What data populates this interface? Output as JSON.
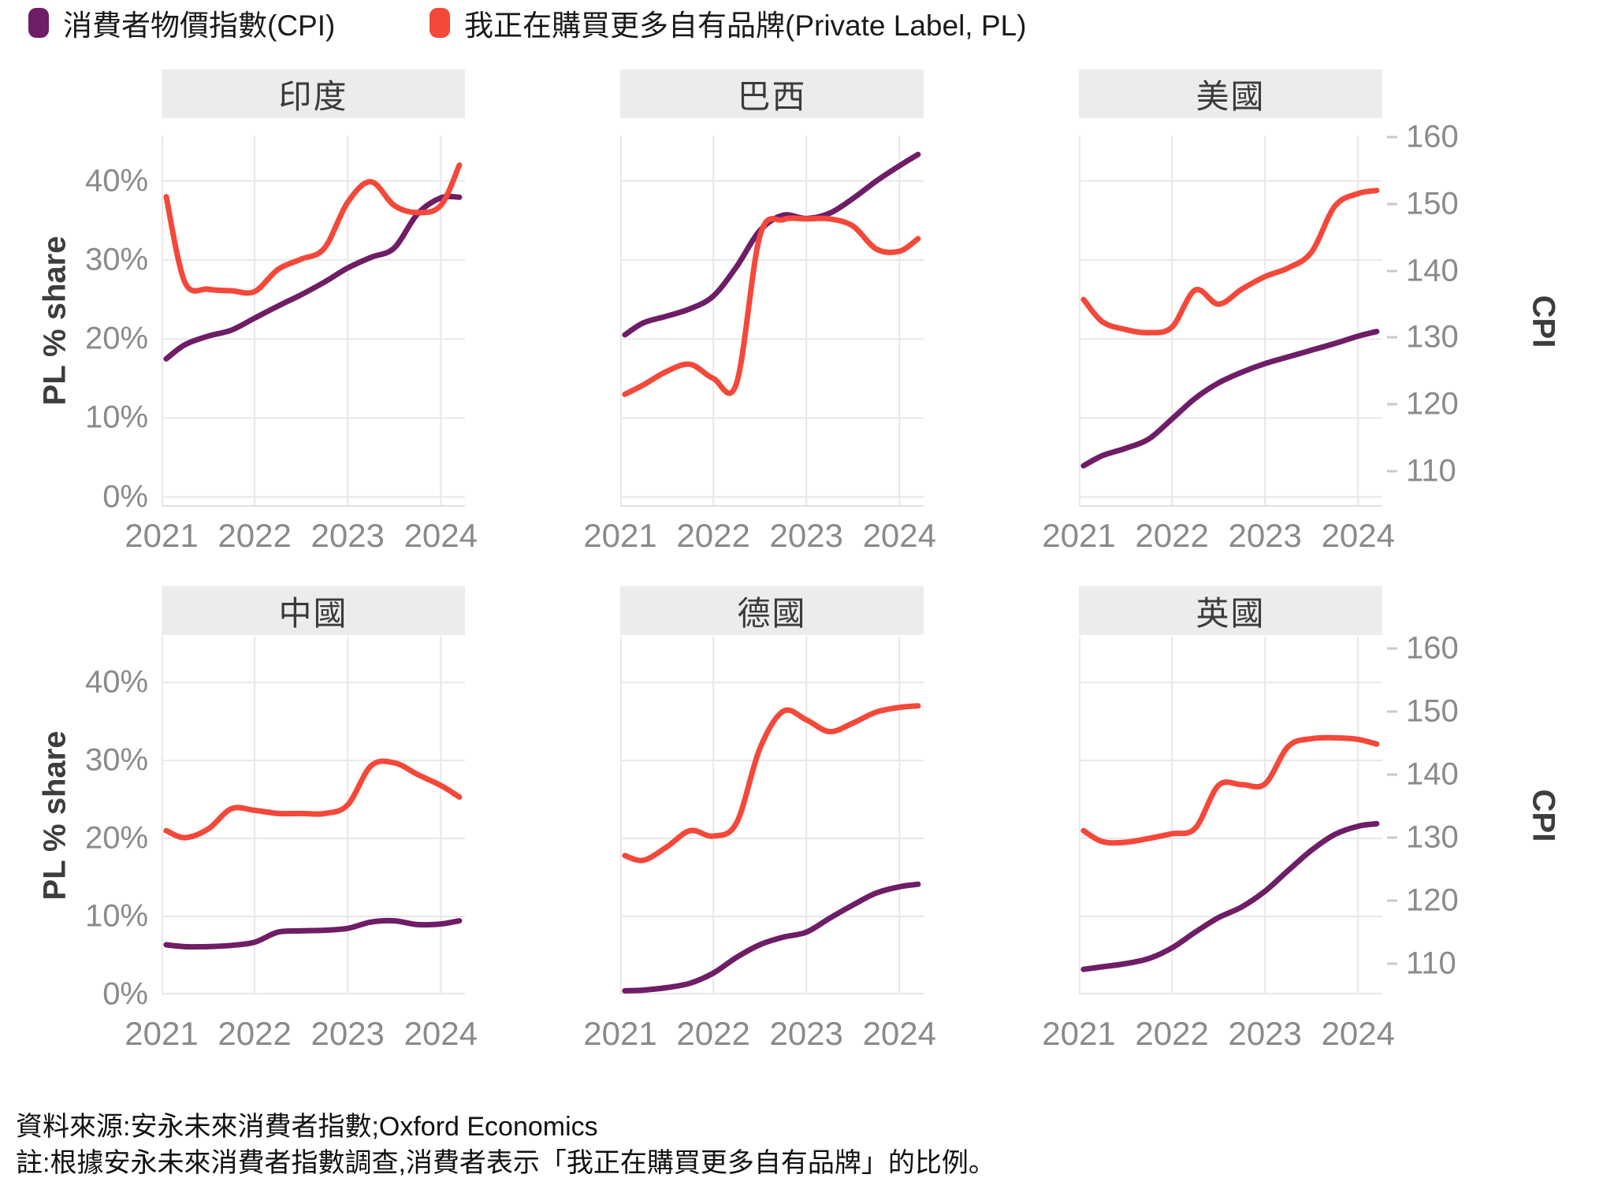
{
  "legend": {
    "items": [
      {
        "id": "cpi",
        "label": "消費者物價指數(CPI)",
        "color": "#6E1D66"
      },
      {
        "id": "pl",
        "label": "我正在購買更多自有品牌(Private Label, PL)",
        "color": "#F4483A"
      }
    ]
  },
  "axes": {
    "left_title": "PL % share",
    "right_title": "CPI",
    "left_ticks": [
      "40%",
      "30%",
      "20%",
      "10%",
      "0%"
    ],
    "right_ticks": [
      "160",
      "150",
      "140",
      "130",
      "120",
      "110"
    ],
    "x_ticks": [
      "2021",
      "2022",
      "2023",
      "2024"
    ]
  },
  "footer": {
    "source": "資料來源:安永未來消費者指數;Oxford Economics",
    "note": "註:根據安永未來消費者指數調查,消費者表示「我正在購買更多自有品牌」的比例。"
  },
  "chart_data": {
    "type": "line",
    "facets": "2 rows x 3 cols, shared axes",
    "x_label": "year",
    "x_range": [
      2021,
      2024.26
    ],
    "x": [
      2021.05,
      2021.25,
      2021.5,
      2021.75,
      2022.0,
      2022.25,
      2022.5,
      2022.75,
      2023.0,
      2023.25,
      2023.5,
      2023.75,
      2024.0,
      2024.2
    ],
    "series_names": {
      "pl": "我正在購買更多自有品牌 (PL % share, left axis)",
      "cpi": "消費者物價指數 CPI (right axis)"
    },
    "left_axis": {
      "label": "PL % share",
      "ticks_pct": [
        40,
        30,
        20,
        10,
        0
      ]
    },
    "right_axis": {
      "label": "CPI",
      "ticks": [
        160,
        150,
        140,
        130,
        120,
        110
      ]
    },
    "grid": "light gray at left-axis ticks and year ticks",
    "legend_position": "top-left",
    "panels": [
      {
        "title": "印度",
        "pl": [
          38.0,
          27.2,
          26.3,
          26.1,
          26.0,
          28.8,
          30.1,
          31.5,
          37.3,
          39.9,
          36.9,
          36.0,
          36.9,
          42.0
        ],
        "cpi": [
          126.8,
          128.9,
          130.2,
          131.1,
          132.9,
          134.7,
          136.4,
          138.3,
          140.4,
          142.0,
          143.4,
          148.5,
          150.9,
          151.0
        ]
      },
      {
        "title": "巴西",
        "pl": [
          13.0,
          14.2,
          15.9,
          16.8,
          15.0,
          14.4,
          33.0,
          35.1,
          35.2,
          35.2,
          34.3,
          31.4,
          31.1,
          32.7
        ],
        "cpi": [
          130.4,
          132.2,
          133.2,
          134.3,
          136.2,
          140.6,
          146.0,
          148.3,
          147.8,
          148.6,
          150.8,
          153.4,
          155.7,
          157.4
        ]
      },
      {
        "title": "美國",
        "pl": [
          25.0,
          22.2,
          21.2,
          20.8,
          21.5,
          26.2,
          24.4,
          26.3,
          27.9,
          29.0,
          31.0,
          36.8,
          38.4,
          38.8
        ],
        "cpi": [
          110.8,
          112.3,
          113.4,
          114.8,
          117.8,
          120.9,
          123.2,
          124.8,
          126.1,
          127.1,
          128.1,
          129.1,
          130.2,
          130.9
        ]
      },
      {
        "title": "中國",
        "pl": [
          21.0,
          20.1,
          21.2,
          23.8,
          23.6,
          23.2,
          23.2,
          23.2,
          24.3,
          29.3,
          29.7,
          28.2,
          26.8,
          25.3
        ],
        "cpi": [
          113.0,
          112.7,
          112.7,
          112.9,
          113.4,
          115.0,
          115.2,
          115.3,
          115.6,
          116.6,
          116.8,
          116.2,
          116.3,
          116.8
        ]
      },
      {
        "title": "德國",
        "pl": [
          17.8,
          17.2,
          18.9,
          21.0,
          20.3,
          22.0,
          31.5,
          36.3,
          35.2,
          33.7,
          34.8,
          36.2,
          36.8,
          37.0
        ],
        "cpi": [
          105.7,
          105.8,
          106.2,
          106.9,
          108.5,
          111.0,
          113.0,
          114.2,
          115.0,
          117.2,
          119.3,
          121.2,
          122.2,
          122.6
        ]
      },
      {
        "title": "英國",
        "pl": [
          21.0,
          19.6,
          19.5,
          20.0,
          20.6,
          21.3,
          26.8,
          26.9,
          27.0,
          31.8,
          32.8,
          32.9,
          32.7,
          32.1
        ],
        "cpi": [
          109.1,
          109.5,
          110.0,
          110.8,
          112.5,
          115.0,
          117.3,
          119.0,
          121.5,
          124.8,
          128.0,
          130.5,
          131.8,
          132.2
        ]
      }
    ]
  }
}
